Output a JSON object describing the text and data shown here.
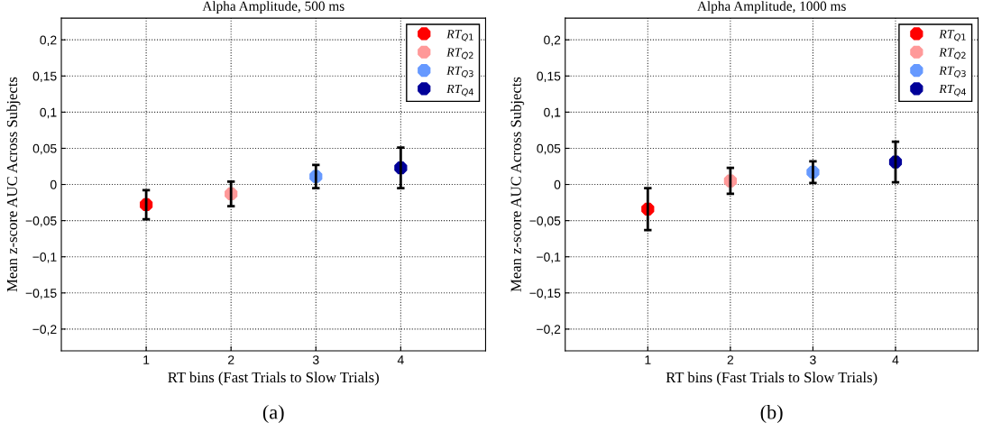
{
  "chart_data": [
    {
      "type": "scatter",
      "title": "Alpha Amplitude, 500 ms",
      "xlabel": "RT bins (Fast Trials to Slow Trials)",
      "ylabel": "Mean z-score AUC Across Subjects",
      "xlim": [
        0,
        5
      ],
      "xticks": [
        1,
        2,
        3,
        4
      ],
      "ylim": [
        -0.23,
        0.23
      ],
      "yticks": [
        {
          "value": -0.2,
          "label": "−0,2"
        },
        {
          "value": -0.15,
          "label": "−0,15"
        },
        {
          "value": -0.1,
          "label": "−0,1"
        },
        {
          "value": -0.05,
          "label": "−0,05"
        },
        0,
        {
          "value": 0.05,
          "label": "0,05"
        },
        {
          "value": 0.1,
          "label": "0,1"
        },
        {
          "value": 0.15,
          "label": "0,15"
        },
        {
          "value": 0.2,
          "label": "0,2"
        }
      ],
      "grid": true,
      "legend": "top right",
      "marker": "circle",
      "annotations": [
        "(a)"
      ],
      "series": [
        {
          "name": "RT$_{Q1}$",
          "color": "#ff0000",
          "x": [
            1
          ],
          "values": [
            -0.028
          ],
          "errors": [
            0.02
          ]
        },
        {
          "name": "RT$_{Q2}$",
          "color": "#ff9999",
          "x": [
            2
          ],
          "values": [
            -0.013
          ],
          "errors": [
            0.017
          ]
        },
        {
          "name": "RT$_{Q3}$",
          "color": "#6699ff",
          "x": [
            3
          ],
          "values": [
            0.011
          ],
          "errors": [
            0.016
          ]
        },
        {
          "name": "RT$_{Q4}$",
          "color": "#000099",
          "x": [
            4
          ],
          "values": [
            0.023
          ],
          "errors": [
            0.028
          ]
        }
      ]
    },
    {
      "type": "scatter",
      "title": "Alpha Amplitude, 1000 ms",
      "xlabel": "RT bins (Fast Trials to Slow Trials)",
      "ylabel": "Mean z-score AUC Across Subjects",
      "xlim": [
        0,
        5
      ],
      "xticks": [
        1,
        2,
        3,
        4
      ],
      "ylim": [
        -0.23,
        0.23
      ],
      "yticks": [
        {
          "value": -0.2,
          "label": "−0,2"
        },
        {
          "value": -0.15,
          "label": "−0,15"
        },
        {
          "value": -0.1,
          "label": "−0,1"
        },
        {
          "value": -0.05,
          "label": "−0,05"
        },
        0,
        {
          "value": 0.05,
          "label": "0,05"
        },
        {
          "value": 0.1,
          "label": "0,1"
        },
        {
          "value": 0.15,
          "label": "0,15"
        },
        {
          "value": 0.2,
          "label": "0,2"
        }
      ],
      "grid": true,
      "legend": "top right",
      "marker": "circle",
      "annotations": [
        "(b)"
      ],
      "series": [
        {
          "name": "RT$_{Q1}$",
          "color": "#ff0000",
          "x": [
            1
          ],
          "values": [
            -0.034
          ],
          "errors": [
            0.029
          ]
        },
        {
          "name": "RT$_{Q2}$",
          "color": "#ff9999",
          "x": [
            2
          ],
          "values": [
            0.005
          ],
          "errors": [
            0.018
          ]
        },
        {
          "name": "RT$_{Q3}$",
          "color": "#6699ff",
          "x": [
            3
          ],
          "values": [
            0.017
          ],
          "errors": [
            0.015
          ]
        },
        {
          "name": "RT$_{Q4}$",
          "color": "#000099",
          "x": [
            4
          ],
          "values": [
            0.031
          ],
          "errors": [
            0.028
          ]
        }
      ]
    }
  ]
}
